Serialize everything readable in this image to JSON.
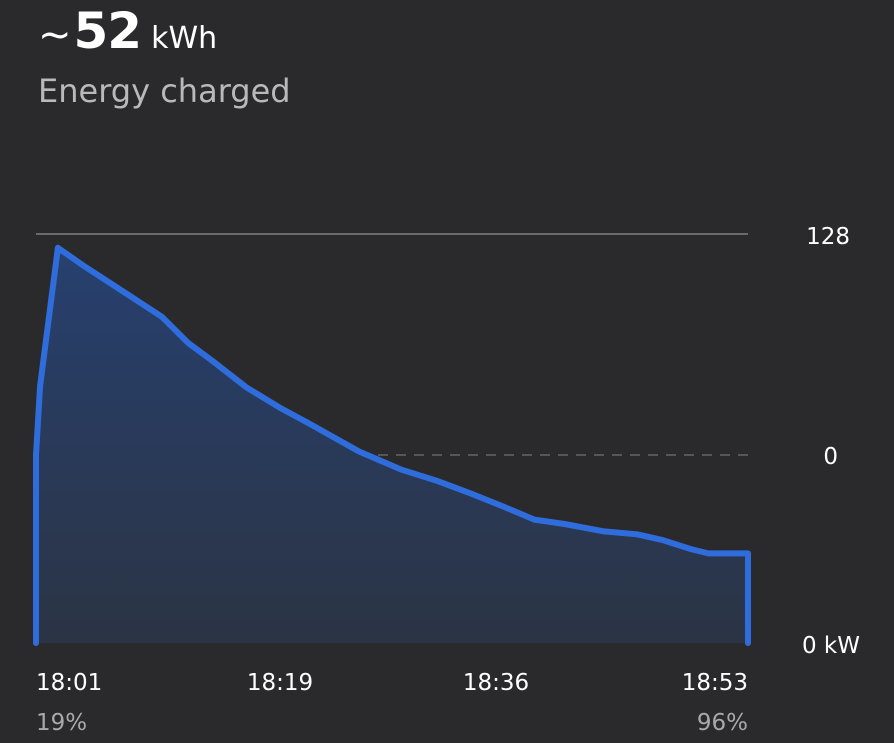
{
  "header": {
    "approx_symbol": "~",
    "energy_value": "52",
    "energy_unit": "kWh",
    "subtitle": "Energy charged"
  },
  "colors": {
    "background": "#2a2a2c",
    "line": "#2f6ddc",
    "fill_top": "#27406f",
    "fill_bottom": "#2b3444",
    "gridline": "#6a6a6e",
    "zero_line": "#55555a"
  },
  "chart_data": {
    "type": "area",
    "title": "",
    "xlabel": "",
    "ylabel": "",
    "y_tick_labels": [
      "128",
      "0",
      "0 kW"
    ],
    "x_tick_labels": [
      "18:01",
      "18:19",
      "18:36",
      "18:53"
    ],
    "x_sub_labels": [
      "19%",
      "",
      "",
      "96%"
    ],
    "grid": true,
    "x_range_minutes": [
      0,
      52
    ],
    "y_range": [
      -128,
      128
    ],
    "series": [
      {
        "x_minutes": [
          0,
          0.3,
          1.6,
          3.4,
          6.5,
          9.2,
          11.1,
          12.8,
          15.4,
          17.9,
          20.0,
          21.8,
          23.6,
          26.7,
          29.4,
          31.7,
          34.1,
          36.4,
          38.6,
          41.5,
          43.9,
          45.8,
          47.8,
          49.1,
          50.2,
          51.5,
          52.0
        ],
        "y": [
          0,
          40,
          120,
          110,
          94,
          80,
          65,
          55,
          39,
          27,
          18,
          10,
          2,
          -10,
          -18,
          -26,
          -35,
          -44,
          -47,
          -52,
          -54,
          -58,
          -64,
          -67,
          -67,
          -67,
          -67
        ]
      }
    ]
  }
}
